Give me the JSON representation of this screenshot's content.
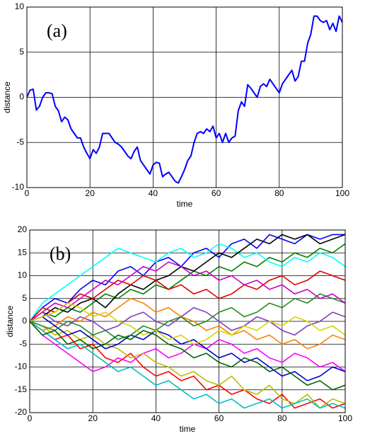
{
  "chart_data": [
    {
      "type": "line",
      "annotation": "(a)",
      "xlabel": "time",
      "ylabel": "distance",
      "grid": true,
      "xlim": [
        0,
        100
      ],
      "ylim": [
        -10,
        10
      ],
      "xticks": [
        0,
        20,
        40,
        60,
        80,
        100
      ],
      "yticks": [
        -10,
        -5,
        0,
        5,
        10
      ],
      "x": [
        0,
        1,
        2,
        3,
        4,
        5,
        6,
        7,
        8,
        9,
        10,
        11,
        12,
        13,
        14,
        15,
        16,
        17,
        18,
        19,
        20,
        21,
        22,
        23,
        24,
        25,
        26,
        27,
        28,
        29,
        30,
        31,
        32,
        33,
        34,
        35,
        36,
        37,
        38,
        39,
        40,
        41,
        42,
        43,
        44,
        45,
        46,
        47,
        48,
        49,
        50,
        51,
        52,
        53,
        54,
        55,
        56,
        57,
        58,
        59,
        60,
        61,
        62,
        63,
        64,
        65,
        66,
        67,
        68,
        69,
        70,
        71,
        72,
        73,
        74,
        75,
        76,
        77,
        78,
        79,
        80,
        81,
        82,
        83,
        84,
        85,
        86,
        87,
        88,
        89,
        90,
        91,
        92,
        93,
        94,
        95,
        96,
        97,
        98,
        99,
        100
      ],
      "series": [
        {
          "color": "#0000ff",
          "values": [
            0,
            0.8,
            0.9,
            -1.4,
            -1,
            0,
            0.5,
            0.5,
            0.4,
            -1,
            -1.5,
            -2.7,
            -2.2,
            -2.5,
            -3.5,
            -4,
            -4.5,
            -4.5,
            -5.5,
            -6.2,
            -6.8,
            -5.8,
            -6.2,
            -5.5,
            -4,
            -4,
            -4,
            -4.5,
            -5,
            -5.2,
            -5.5,
            -6,
            -6.5,
            -6.8,
            -6,
            -5.5,
            -7,
            -7.5,
            -8,
            -8.5,
            -7.5,
            -7.2,
            -7.3,
            -8.8,
            -8.5,
            -8.3,
            -8.8,
            -9.3,
            -9.5,
            -8.8,
            -8,
            -7,
            -6.5,
            -5,
            -4,
            -3.8,
            -4,
            -3.5,
            -3.8,
            -3.2,
            -4.5,
            -4,
            -5,
            -4,
            -5,
            -4.5,
            -4.3,
            -1.5,
            -0.5,
            -1,
            1.4,
            1,
            0.5,
            0,
            1.2,
            1.5,
            1.2,
            2,
            1.5,
            1,
            0.5,
            1.5,
            2,
            2.5,
            3,
            1.8,
            2.3,
            4,
            4,
            6,
            7,
            9,
            9,
            8.5,
            8.3,
            8.5,
            7.5,
            8.2,
            7.3,
            9,
            8.3
          ]
        }
      ]
    },
    {
      "type": "line",
      "annotation": "(b)",
      "xlabel": "time",
      "ylabel": "distance",
      "grid": true,
      "xlim": [
        0,
        100
      ],
      "ylim": [
        -20,
        20
      ],
      "xticks": [
        0,
        20,
        40,
        60,
        80,
        100
      ],
      "yticks": [
        -20,
        -15,
        -10,
        -5,
        0,
        5,
        10,
        15,
        20
      ],
      "x": [
        0,
        4,
        8,
        12,
        16,
        20,
        24,
        28,
        32,
        36,
        40,
        44,
        48,
        52,
        56,
        60,
        64,
        68,
        72,
        76,
        80,
        84,
        88,
        92,
        96,
        100
      ],
      "series": [
        {
          "color": "#0000ff",
          "values": [
            0,
            3,
            5,
            4,
            7,
            9,
            8,
            11,
            12,
            10,
            13,
            14,
            12,
            15,
            16,
            14,
            17,
            18,
            16,
            19,
            18,
            17,
            19,
            18,
            19,
            19
          ]
        },
        {
          "color": "#ff0000",
          "values": [
            0,
            -2,
            -4,
            -3,
            -6,
            -5,
            -8,
            -9,
            -7,
            -10,
            -12,
            -11,
            -13,
            -12,
            -15,
            -14,
            -16,
            -15,
            -17,
            -18,
            -16,
            -19,
            -18,
            -17,
            -19,
            -18
          ]
        },
        {
          "color": "#008000",
          "values": [
            0,
            2,
            1,
            3,
            2,
            4,
            6,
            5,
            7,
            6,
            8,
            7,
            9,
            11,
            10,
            12,
            11,
            13,
            12,
            14,
            13,
            15,
            14,
            16,
            15,
            17
          ]
        },
        {
          "color": "#00ffff",
          "values": [
            0,
            4,
            6,
            8,
            10,
            12,
            14,
            16,
            15,
            14,
            13,
            15,
            16,
            14,
            15,
            17,
            16,
            14,
            15,
            13,
            12,
            14,
            13,
            15,
            14,
            12
          ]
        },
        {
          "color": "#ff00ff",
          "values": [
            0,
            -3,
            -5,
            -7,
            -9,
            -11,
            -10,
            -8,
            -9,
            -7,
            -6,
            -8,
            -7,
            -5,
            -6,
            -4,
            -5,
            -7,
            -6,
            -8,
            -9,
            -7,
            -8,
            -10,
            -9,
            -11
          ]
        },
        {
          "color": "#bcbc00",
          "values": [
            0,
            -1,
            -3,
            -2,
            -4,
            -3,
            -5,
            -6,
            -8,
            -7,
            -9,
            -10,
            -12,
            -11,
            -13,
            -14,
            -12,
            -15,
            -16,
            -14,
            -17,
            -18,
            -16,
            -19,
            -17,
            -18
          ]
        },
        {
          "color": "#000000",
          "values": [
            0,
            1,
            3,
            2,
            4,
            5,
            3,
            6,
            8,
            7,
            9,
            10,
            12,
            11,
            13,
            15,
            14,
            16,
            18,
            17,
            19,
            18,
            19,
            17,
            18,
            19
          ]
        },
        {
          "color": "#7f3fbf",
          "values": [
            0,
            2,
            0,
            -1,
            1,
            0,
            -2,
            -1,
            1,
            2,
            0,
            -1,
            1,
            3,
            2,
            0,
            -2,
            -1,
            1,
            0,
            -2,
            -3,
            -1,
            0,
            2,
            1
          ]
        },
        {
          "color": "#ff8000",
          "values": [
            0,
            -2,
            -1,
            1,
            0,
            2,
            1,
            3,
            5,
            4,
            2,
            3,
            1,
            0,
            -2,
            -1,
            -3,
            -2,
            -4,
            -3,
            -5,
            -4,
            -6,
            -5,
            -3,
            -4
          ]
        },
        {
          "color": "#0000cc",
          "values": [
            0,
            1,
            -1,
            -3,
            -2,
            -4,
            -6,
            -5,
            -3,
            -4,
            -2,
            -3,
            -5,
            -4,
            -6,
            -8,
            -7,
            -9,
            -8,
            -10,
            -12,
            -11,
            -13,
            -12,
            -10,
            -11
          ]
        },
        {
          "color": "#e00000",
          "values": [
            0,
            3,
            2,
            4,
            6,
            5,
            7,
            9,
            8,
            10,
            9,
            7,
            8,
            6,
            7,
            5,
            6,
            8,
            7,
            9,
            10,
            8,
            9,
            11,
            10,
            9
          ]
        },
        {
          "color": "#228b22",
          "values": [
            0,
            -1,
            -2,
            0,
            -1,
            -3,
            -2,
            -4,
            -3,
            -1,
            -2,
            0,
            1,
            -1,
            0,
            2,
            3,
            1,
            2,
            4,
            3,
            5,
            4,
            6,
            5,
            4
          ]
        },
        {
          "color": "#00bfbf",
          "values": [
            0,
            -2,
            -4,
            -6,
            -5,
            -7,
            -9,
            -11,
            -10,
            -12,
            -14,
            -13,
            -15,
            -17,
            -16,
            -18,
            -17,
            -19,
            -18,
            -17,
            -19,
            -18,
            -17,
            -19,
            -18,
            -19
          ]
        },
        {
          "color": "#cc00cc",
          "values": [
            0,
            2,
            4,
            3,
            5,
            7,
            9,
            8,
            10,
            12,
            11,
            13,
            12,
            10,
            11,
            9,
            10,
            8,
            9,
            7,
            8,
            6,
            7,
            5,
            6,
            4
          ]
        },
        {
          "color": "#d4d400",
          "values": [
            0,
            1,
            2,
            4,
            3,
            1,
            2,
            0,
            -1,
            -3,
            -2,
            -4,
            -3,
            -5,
            -4,
            -2,
            -3,
            -1,
            -2,
            0,
            -1,
            1,
            0,
            -2,
            -1,
            -3
          ]
        },
        {
          "color": "#006400",
          "values": [
            0,
            -3,
            -2,
            -5,
            -4,
            -6,
            -5,
            -3,
            -4,
            -2,
            -3,
            -5,
            -6,
            -8,
            -7,
            -9,
            -10,
            -8,
            -9,
            -11,
            -10,
            -12,
            -14,
            -13,
            -15,
            -14
          ]
        }
      ]
    }
  ]
}
